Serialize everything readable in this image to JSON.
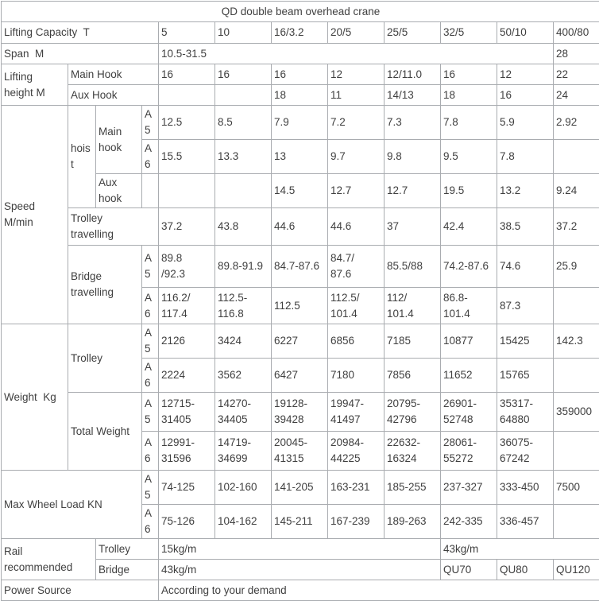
{
  "colors": {
    "border": "#a9acb0",
    "text": "#404040",
    "background": "#ffffff"
  },
  "table": {
    "title": "QD double beam overhead crane",
    "rows": [
      {
        "cells": [
          {
            "t": "QD double beam overhead crane",
            "cs": 12,
            "n": "table-title"
          }
        ]
      },
      {
        "cells": [
          {
            "t": "Lifting Capacity  T",
            "cs": 4,
            "n": "row-label-lifting-capacity"
          },
          {
            "t": "5"
          },
          {
            "t": "10"
          },
          {
            "t": "16/3.2"
          },
          {
            "t": "20/5"
          },
          {
            "t": "25/5"
          },
          {
            "t": "32/5"
          },
          {
            "t": "50/10"
          },
          {
            "t": "400/80"
          }
        ]
      },
      {
        "cells": [
          {
            "t": "Span  M",
            "cs": 4,
            "n": "row-label-span"
          },
          {
            "t": "10.5-31.5",
            "cs": 7
          },
          {
            "t": "28"
          }
        ]
      },
      {
        "cells": [
          {
            "t": "Lifting\nheight M",
            "rs": 2,
            "n": "row-label-lifting-height"
          },
          {
            "t": "Main Hook",
            "cs": 3,
            "n": "row-label-main-hook"
          },
          {
            "t": "16"
          },
          {
            "t": "16"
          },
          {
            "t": "16"
          },
          {
            "t": "12"
          },
          {
            "t": "12/11.0"
          },
          {
            "t": "16"
          },
          {
            "t": "12"
          },
          {
            "t": "22"
          }
        ]
      },
      {
        "cells": [
          {
            "t": "Aux Hook",
            "cs": 3,
            "n": "row-label-aux-hook"
          },
          {
            "t": ""
          },
          {
            "t": ""
          },
          {
            "t": "18"
          },
          {
            "t": "11"
          },
          {
            "t": "14/13"
          },
          {
            "t": "18"
          },
          {
            "t": "16"
          },
          {
            "t": "24"
          }
        ]
      },
      {
        "cells": [
          {
            "t": "Speed\nM/min",
            "rs": 6,
            "n": "row-label-speed"
          },
          {
            "t": "hoist",
            "rs": 3,
            "n": "row-label-hoist"
          },
          {
            "t": "Main\nhook",
            "rs": 2,
            "n": "row-label-hoist-main-hook"
          },
          {
            "t": "A5",
            "n": "class-a5"
          },
          {
            "t": "12.5"
          },
          {
            "t": "8.5"
          },
          {
            "t": "7.9"
          },
          {
            "t": "7.2"
          },
          {
            "t": "7.3"
          },
          {
            "t": "7.8"
          },
          {
            "t": "5.9"
          },
          {
            "t": "2.92"
          }
        ]
      },
      {
        "cells": [
          {
            "t": "A6",
            "n": "class-a6"
          },
          {
            "t": "15.5"
          },
          {
            "t": "13.3"
          },
          {
            "t": "13"
          },
          {
            "t": "9.7"
          },
          {
            "t": "9.8"
          },
          {
            "t": "9.5"
          },
          {
            "t": "7.8"
          },
          {
            "t": ""
          }
        ]
      },
      {
        "cells": [
          {
            "t": "Aux\nhook",
            "n": "row-label-hoist-aux-hook"
          },
          {
            "t": ""
          },
          {
            "t": ""
          },
          {
            "t": ""
          },
          {
            "t": "14.5"
          },
          {
            "t": "12.7"
          },
          {
            "t": "12.7"
          },
          {
            "t": "19.5"
          },
          {
            "t": "13.2"
          },
          {
            "t": "9.24"
          }
        ]
      },
      {
        "cells": [
          {
            "t": "Trolley\ntravelling",
            "cs": 3,
            "n": "row-label-trolley-travelling"
          },
          {
            "t": "37.2"
          },
          {
            "t": "43.8"
          },
          {
            "t": "44.6"
          },
          {
            "t": "44.6"
          },
          {
            "t": "37"
          },
          {
            "t": "42.4"
          },
          {
            "t": "38.5"
          },
          {
            "t": "37.2"
          }
        ]
      },
      {
        "cells": [
          {
            "t": "Bridge\ntravelling",
            "cs": 2,
            "rs": 2,
            "n": "row-label-bridge-travelling"
          },
          {
            "t": "A5",
            "n": "class-a5"
          },
          {
            "t": "89.8\n/92.3"
          },
          {
            "t": "89.8-91.9"
          },
          {
            "t": "84.7-87.6"
          },
          {
            "t": "84.7/\n87.6"
          },
          {
            "t": "85.5/88"
          },
          {
            "t": "74.2-87.6"
          },
          {
            "t": "74.6"
          },
          {
            "t": "25.9"
          }
        ]
      },
      {
        "cells": [
          {
            "t": "A6",
            "n": "class-a6"
          },
          {
            "t": "116.2/\n117.4"
          },
          {
            "t": "112.5-\n116.8"
          },
          {
            "t": "112.5"
          },
          {
            "t": "112.5/\n101.4"
          },
          {
            "t": "112/\n101.4"
          },
          {
            "t": "86.8-\n101.4"
          },
          {
            "t": "87.3"
          },
          {
            "t": ""
          }
        ]
      },
      {
        "cells": [
          {
            "t": "Weight  Kg",
            "rs": 4,
            "n": "row-label-weight"
          },
          {
            "t": "Trolley",
            "cs": 2,
            "rs": 2,
            "n": "row-label-trolley-weight"
          },
          {
            "t": "A5",
            "n": "class-a5"
          },
          {
            "t": "2126"
          },
          {
            "t": "3424"
          },
          {
            "t": "6227"
          },
          {
            "t": "6856"
          },
          {
            "t": "7185"
          },
          {
            "t": "10877"
          },
          {
            "t": "15425"
          },
          {
            "t": "142.3"
          }
        ]
      },
      {
        "cells": [
          {
            "t": "A6",
            "n": "class-a6"
          },
          {
            "t": "2224"
          },
          {
            "t": "3562"
          },
          {
            "t": "6427"
          },
          {
            "t": "7180"
          },
          {
            "t": "7856"
          },
          {
            "t": "11652"
          },
          {
            "t": "15765"
          },
          {
            "t": ""
          }
        ]
      },
      {
        "cells": [
          {
            "t": "Total Weight",
            "cs": 2,
            "rs": 2,
            "n": "row-label-total-weight"
          },
          {
            "t": "A5",
            "n": "class-a5"
          },
          {
            "t": "12715-\n31405"
          },
          {
            "t": "14270-\n34405"
          },
          {
            "t": "19128-\n39428"
          },
          {
            "t": "19947-\n41497"
          },
          {
            "t": "20795-\n42796"
          },
          {
            "t": "26901-\n52748"
          },
          {
            "t": "35317-\n64880"
          },
          {
            "t": "359000"
          }
        ]
      },
      {
        "cells": [
          {
            "t": "A6",
            "n": "class-a6"
          },
          {
            "t": "12991-\n31596"
          },
          {
            "t": "14719-\n34699"
          },
          {
            "t": "20045-\n41315"
          },
          {
            "t": "20984-\n44225"
          },
          {
            "t": "22632-\n16324"
          },
          {
            "t": "28061-\n55272"
          },
          {
            "t": "36075-\n67242"
          },
          {
            "t": ""
          }
        ]
      },
      {
        "cells": [
          {
            "t": "Max Wheel Load KN",
            "cs": 3,
            "rs": 2,
            "n": "row-label-max-wheel-load"
          },
          {
            "t": "A5",
            "n": "class-a5"
          },
          {
            "t": "74-125"
          },
          {
            "t": "102-160"
          },
          {
            "t": "141-205"
          },
          {
            "t": "163-231"
          },
          {
            "t": "185-255"
          },
          {
            "t": "237-327"
          },
          {
            "t": "333-450"
          },
          {
            "t": "7500"
          }
        ]
      },
      {
        "cells": [
          {
            "t": "A6",
            "n": "class-a6"
          },
          {
            "t": "75-126"
          },
          {
            "t": "104-162"
          },
          {
            "t": "145-211"
          },
          {
            "t": "167-239"
          },
          {
            "t": "189-263"
          },
          {
            "t": "242-335"
          },
          {
            "t": "336-457"
          },
          {
            "t": ""
          }
        ]
      },
      {
        "cells": [
          {
            "t": "Rail\nrecommended",
            "cs": 2,
            "rs": 2,
            "n": "row-label-rail-recommended"
          },
          {
            "t": "Trolley",
            "cs": 2,
            "n": "row-label-rail-trolley"
          },
          {
            "t": "15kg/m",
            "cs": 5
          },
          {
            "t": "43kg/m",
            "cs": 3
          }
        ]
      },
      {
        "cells": [
          {
            "t": "Bridge",
            "cs": 2,
            "n": "row-label-rail-bridge"
          },
          {
            "t": "43kg/m",
            "cs": 5
          },
          {
            "t": "QU70"
          },
          {
            "t": "QU80"
          },
          {
            "t": "QU120"
          }
        ]
      },
      {
        "cells": [
          {
            "t": "Power Source",
            "cs": 4,
            "n": "row-label-power-source"
          },
          {
            "t": "According to your demand",
            "cs": 8
          }
        ]
      }
    ]
  }
}
